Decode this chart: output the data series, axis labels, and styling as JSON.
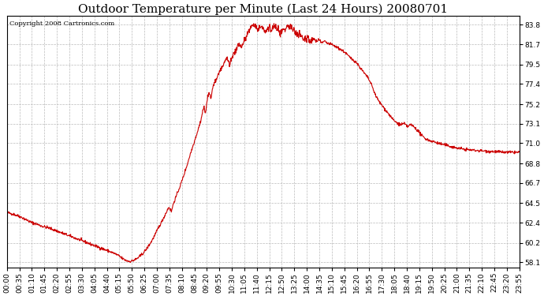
{
  "title": "Outdoor Temperature per Minute (Last 24 Hours) 20080701",
  "copyright_text": "Copyright 2008 Cartronics.com",
  "line_color": "#cc0000",
  "bg_color": "#ffffff",
  "plot_bg_color": "#ffffff",
  "grid_color": "#bbbbbb",
  "yticks": [
    58.1,
    60.2,
    62.4,
    64.5,
    66.7,
    68.8,
    71.0,
    73.1,
    75.2,
    77.4,
    79.5,
    81.7,
    83.8
  ],
  "ylim": [
    57.5,
    84.8
  ],
  "title_fontsize": 11,
  "tick_fontsize": 6.5,
  "copyright_fontsize": 6.0,
  "xtick_labels": [
    "00:00",
    "00:35",
    "01:10",
    "01:45",
    "02:20",
    "02:55",
    "03:30",
    "04:05",
    "04:40",
    "05:15",
    "05:50",
    "06:25",
    "07:00",
    "07:35",
    "08:10",
    "08:45",
    "09:20",
    "09:55",
    "10:30",
    "11:05",
    "11:40",
    "12:15",
    "12:50",
    "13:25",
    "14:00",
    "14:35",
    "15:10",
    "15:45",
    "16:20",
    "16:55",
    "17:30",
    "18:05",
    "18:40",
    "19:15",
    "19:50",
    "20:25",
    "21:00",
    "21:35",
    "22:10",
    "22:45",
    "23:20",
    "23:55"
  ],
  "line_width": 0.8,
  "waypoints": [
    [
      0,
      63.5
    ],
    [
      20,
      63.3
    ],
    [
      40,
      63.0
    ],
    [
      60,
      62.6
    ],
    [
      70,
      62.4
    ],
    [
      80,
      62.3
    ],
    [
      100,
      62.0
    ],
    [
      120,
      61.8
    ],
    [
      140,
      61.5
    ],
    [
      160,
      61.2
    ],
    [
      180,
      60.9
    ],
    [
      200,
      60.6
    ],
    [
      220,
      60.3
    ],
    [
      240,
      60.0
    ],
    [
      260,
      59.7
    ],
    [
      280,
      59.4
    ],
    [
      300,
      59.1
    ],
    [
      315,
      58.8
    ],
    [
      325,
      58.5
    ],
    [
      335,
      58.3
    ],
    [
      345,
      58.2
    ],
    [
      355,
      58.3
    ],
    [
      365,
      58.5
    ],
    [
      375,
      58.8
    ],
    [
      385,
      59.2
    ],
    [
      395,
      59.7
    ],
    [
      405,
      60.3
    ],
    [
      415,
      61.0
    ],
    [
      425,
      61.8
    ],
    [
      435,
      62.5
    ],
    [
      445,
      63.3
    ],
    [
      455,
      64.1
    ],
    [
      462,
      63.6
    ],
    [
      468,
      64.5
    ],
    [
      475,
      65.2
    ],
    [
      485,
      66.2
    ],
    [
      495,
      67.3
    ],
    [
      505,
      68.5
    ],
    [
      515,
      69.8
    ],
    [
      525,
      71.0
    ],
    [
      535,
      72.2
    ],
    [
      545,
      73.5
    ],
    [
      553,
      75.0
    ],
    [
      558,
      74.2
    ],
    [
      563,
      75.8
    ],
    [
      568,
      76.5
    ],
    [
      573,
      75.8
    ],
    [
      578,
      77.0
    ],
    [
      583,
      77.5
    ],
    [
      590,
      78.0
    ],
    [
      598,
      78.8
    ],
    [
      605,
      79.2
    ],
    [
      612,
      79.8
    ],
    [
      618,
      80.2
    ],
    [
      625,
      79.5
    ],
    [
      630,
      80.0
    ],
    [
      638,
      80.8
    ],
    [
      645,
      81.2
    ],
    [
      652,
      81.8
    ],
    [
      658,
      81.3
    ],
    [
      665,
      82.0
    ],
    [
      672,
      82.5
    ],
    [
      678,
      83.0
    ],
    [
      685,
      83.5
    ],
    [
      692,
      83.8
    ],
    [
      700,
      83.5
    ],
    [
      707,
      83.2
    ],
    [
      714,
      83.6
    ],
    [
      720,
      83.4
    ],
    [
      726,
      83.0
    ],
    [
      732,
      83.2
    ],
    [
      738,
      83.5
    ],
    [
      744,
      83.2
    ],
    [
      750,
      83.8
    ],
    [
      756,
      83.5
    ],
    [
      762,
      83.2
    ],
    [
      768,
      82.8
    ],
    [
      774,
      83.0
    ],
    [
      780,
      83.2
    ],
    [
      786,
      83.5
    ],
    [
      792,
      83.8
    ],
    [
      798,
      83.5
    ],
    [
      805,
      83.2
    ],
    [
      812,
      83.0
    ],
    [
      820,
      82.8
    ],
    [
      828,
      82.5
    ],
    [
      836,
      82.2
    ],
    [
      844,
      82.5
    ],
    [
      852,
      82.0
    ],
    [
      860,
      82.3
    ],
    [
      868,
      82.0
    ],
    [
      876,
      82.2
    ],
    [
      884,
      81.8
    ],
    [
      892,
      82.0
    ],
    [
      900,
      81.8
    ],
    [
      910,
      81.7
    ],
    [
      920,
      81.5
    ],
    [
      935,
      81.2
    ],
    [
      950,
      80.8
    ],
    [
      965,
      80.2
    ],
    [
      980,
      79.8
    ],
    [
      995,
      79.0
    ],
    [
      1005,
      78.5
    ],
    [
      1015,
      78.0
    ],
    [
      1025,
      77.2
    ],
    [
      1035,
      76.2
    ],
    [
      1045,
      75.5
    ],
    [
      1055,
      75.0
    ],
    [
      1065,
      74.5
    ],
    [
      1075,
      74.0
    ],
    [
      1085,
      73.5
    ],
    [
      1095,
      73.2
    ],
    [
      1105,
      73.0
    ],
    [
      1115,
      73.1
    ],
    [
      1125,
      72.8
    ],
    [
      1135,
      73.0
    ],
    [
      1145,
      72.7
    ],
    [
      1155,
      72.3
    ],
    [
      1165,
      71.8
    ],
    [
      1175,
      71.5
    ],
    [
      1185,
      71.3
    ],
    [
      1195,
      71.2
    ],
    [
      1210,
      71.0
    ],
    [
      1230,
      70.8
    ],
    [
      1260,
      70.5
    ],
    [
      1290,
      70.3
    ],
    [
      1320,
      70.2
    ],
    [
      1360,
      70.1
    ],
    [
      1400,
      70.0
    ],
    [
      1420,
      70.0
    ],
    [
      1439,
      70.0
    ]
  ]
}
